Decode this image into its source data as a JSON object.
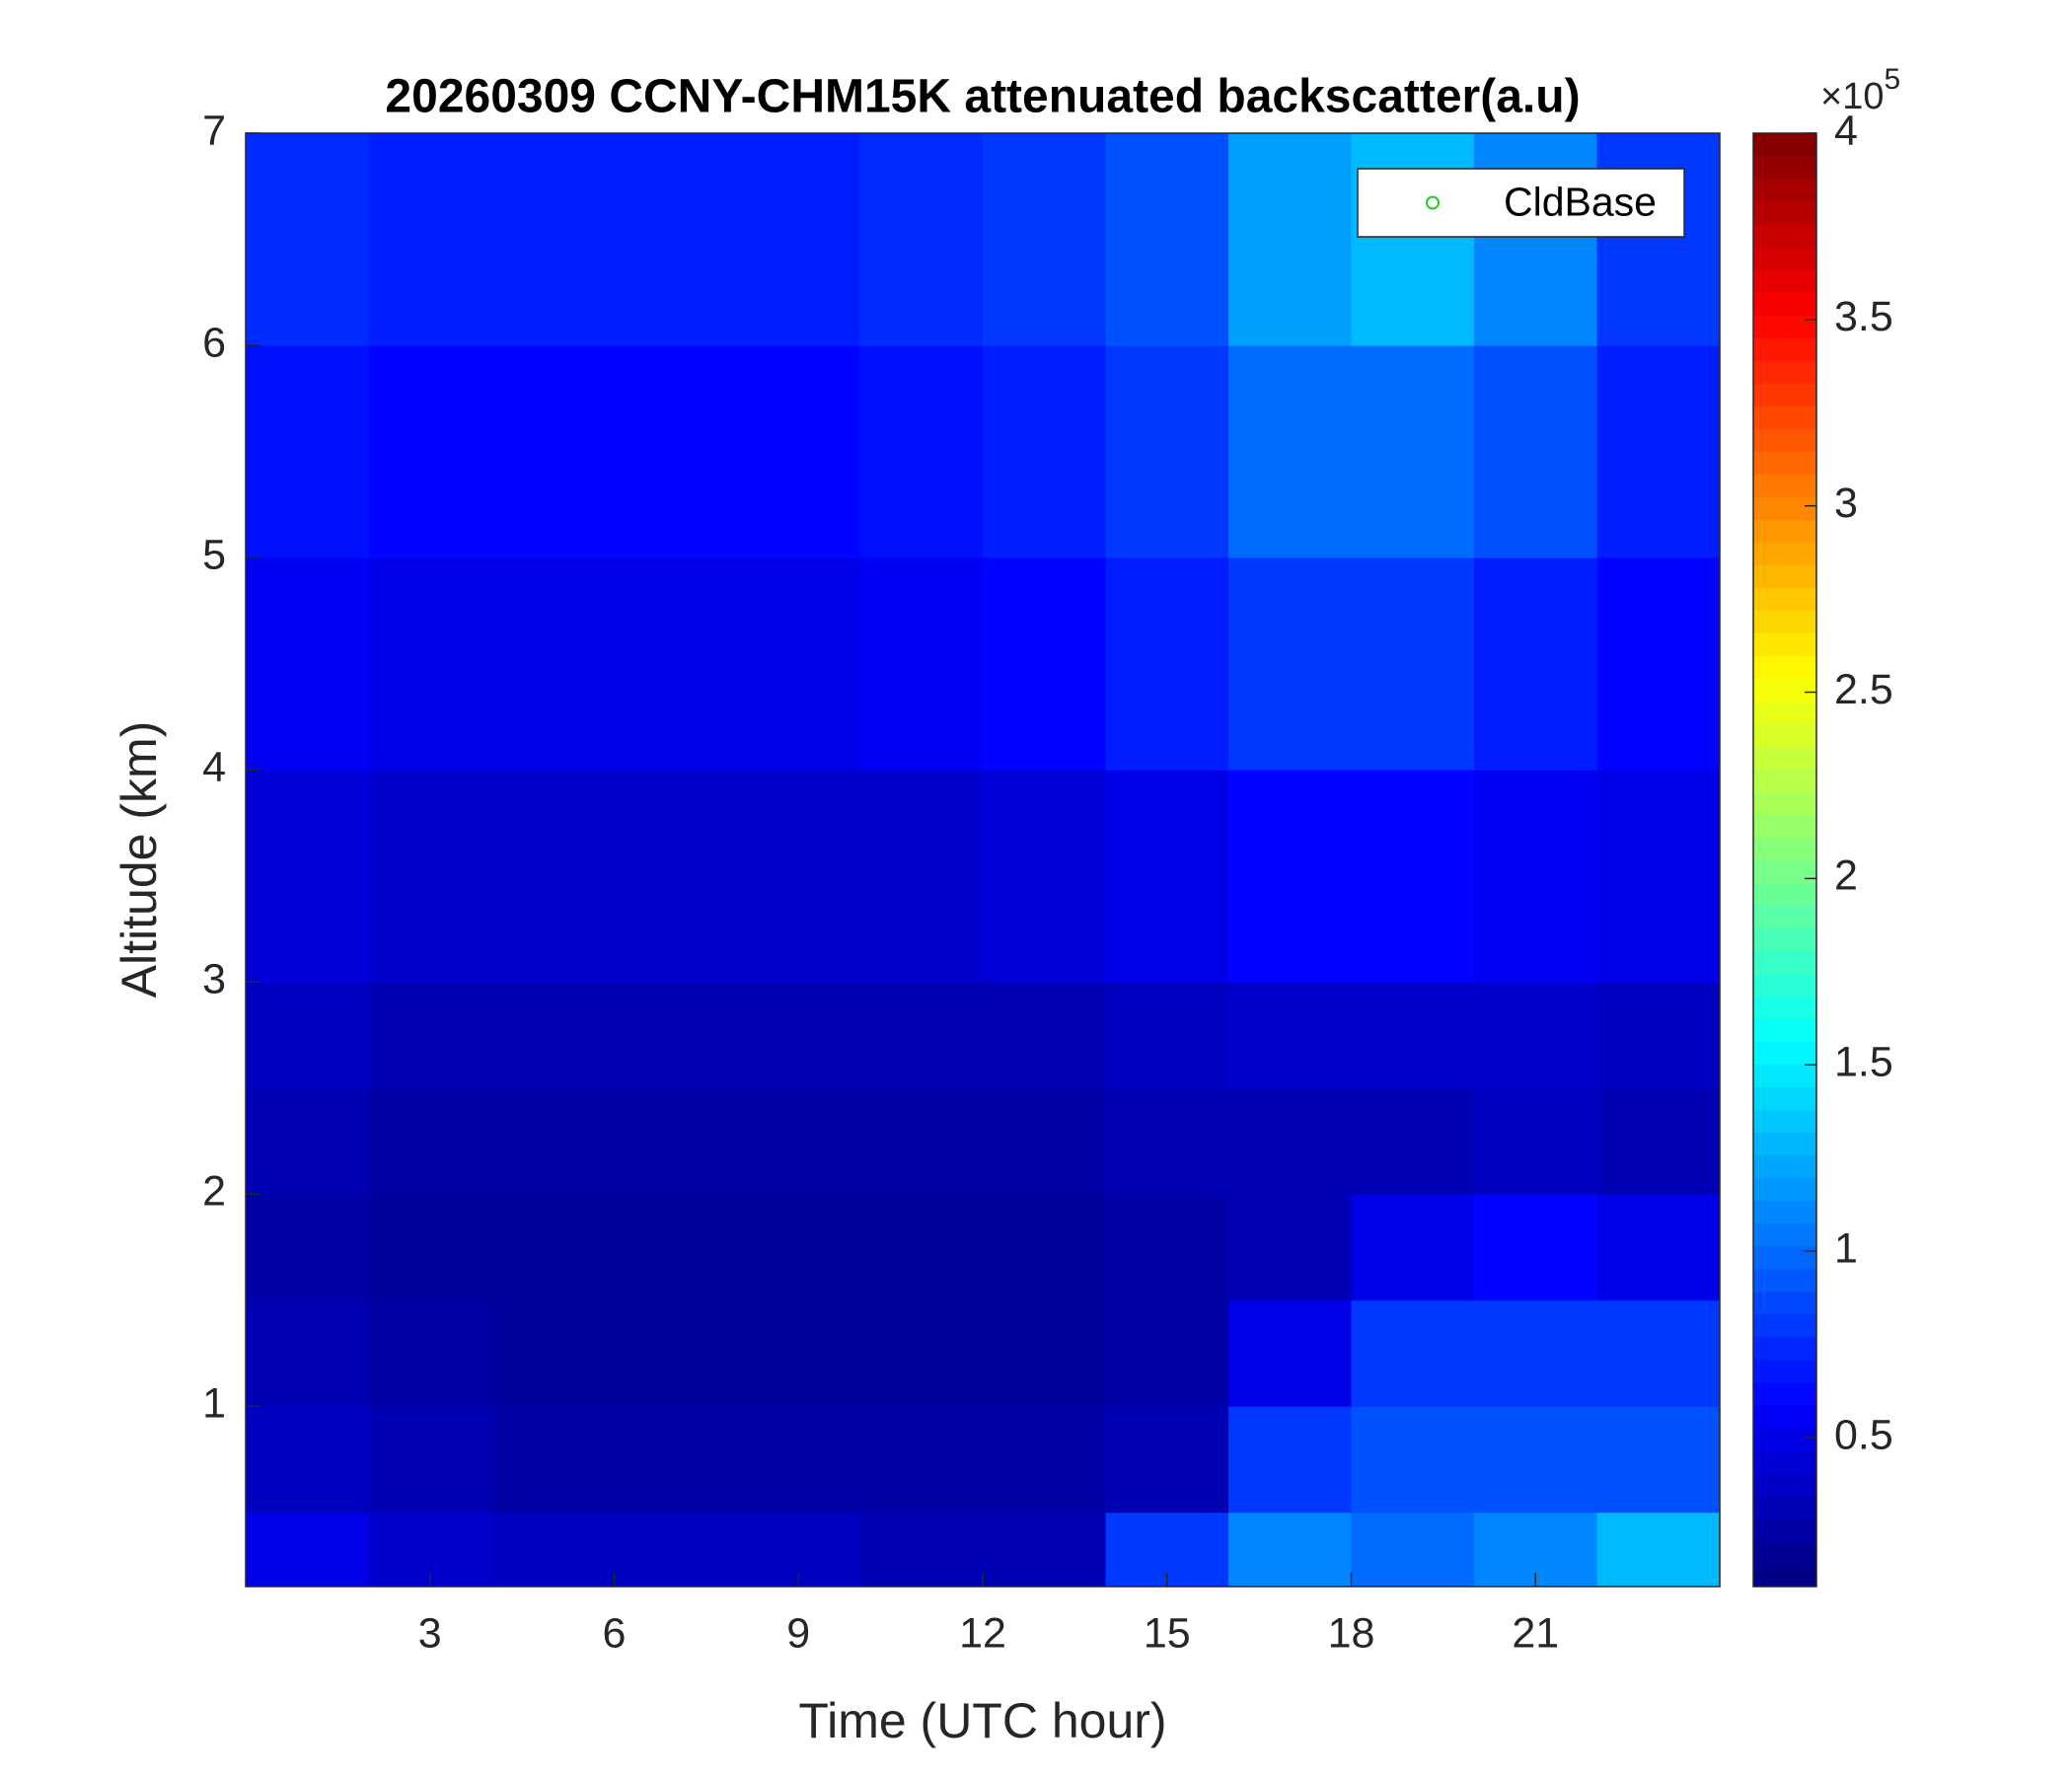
{
  "chart_data": {
    "type": "heatmap",
    "title": "20260309 CCNY-CHM15K attenuated backscatter(a.u)",
    "x_label": "Time (UTC hour)",
    "y_label": "Altitude (km)",
    "x_edges": [
      0,
      2,
      4,
      6,
      8,
      10,
      12,
      14,
      16,
      18,
      20,
      22,
      24
    ],
    "y_edges": [
      0.15,
      0.5,
      1,
      1.5,
      2,
      2.5,
      3,
      4,
      5,
      6,
      7
    ],
    "z": [
      [
        0.5,
        0.4,
        0.35,
        0.35,
        0.35,
        0.3,
        0.3,
        0.8,
        1.1,
        1.0,
        1.1,
        1.3
      ],
      [
        0.35,
        0.3,
        0.25,
        0.25,
        0.25,
        0.25,
        0.25,
        0.3,
        0.8,
        0.9,
        0.9,
        0.9
      ],
      [
        0.3,
        0.25,
        0.2,
        0.2,
        0.2,
        0.2,
        0.2,
        0.25,
        0.5,
        0.8,
        0.8,
        0.8
      ],
      [
        0.25,
        0.2,
        0.2,
        0.2,
        0.2,
        0.2,
        0.2,
        0.25,
        0.3,
        0.5,
        0.6,
        0.5
      ],
      [
        0.3,
        0.25,
        0.25,
        0.25,
        0.25,
        0.25,
        0.25,
        0.3,
        0.3,
        0.3,
        0.35,
        0.3
      ],
      [
        0.35,
        0.3,
        0.3,
        0.3,
        0.3,
        0.3,
        0.3,
        0.35,
        0.4,
        0.4,
        0.4,
        0.35
      ],
      [
        0.45,
        0.4,
        0.4,
        0.4,
        0.4,
        0.4,
        0.45,
        0.5,
        0.6,
        0.6,
        0.55,
        0.5
      ],
      [
        0.55,
        0.5,
        0.5,
        0.5,
        0.5,
        0.55,
        0.6,
        0.7,
        0.8,
        0.8,
        0.7,
        0.6
      ],
      [
        0.65,
        0.6,
        0.6,
        0.6,
        0.6,
        0.65,
        0.7,
        0.8,
        1.0,
        1.0,
        0.9,
        0.7
      ],
      [
        0.75,
        0.7,
        0.7,
        0.7,
        0.7,
        0.75,
        0.8,
        0.9,
        1.2,
        1.3,
        1.1,
        0.8
      ]
    ],
    "xlim": [
      0,
      24
    ],
    "xticks": [
      3,
      6,
      9,
      12,
      15,
      18,
      21
    ],
    "ylim": [
      0.15,
      7
    ],
    "yticks": [
      1,
      2,
      3,
      4,
      5,
      6,
      7
    ],
    "colormap": "jet",
    "clim": [
      0.1,
      4
    ],
    "cticks": [
      0.5,
      1,
      1.5,
      2,
      2.5,
      3,
      3.5,
      4
    ],
    "colorbar_multiplier": {
      "base": "×10",
      "exponent": "5"
    },
    "legend": [
      {
        "name": "CldBase",
        "color": "#22cc22",
        "marker": "o"
      }
    ],
    "legend_position": "upper right"
  }
}
